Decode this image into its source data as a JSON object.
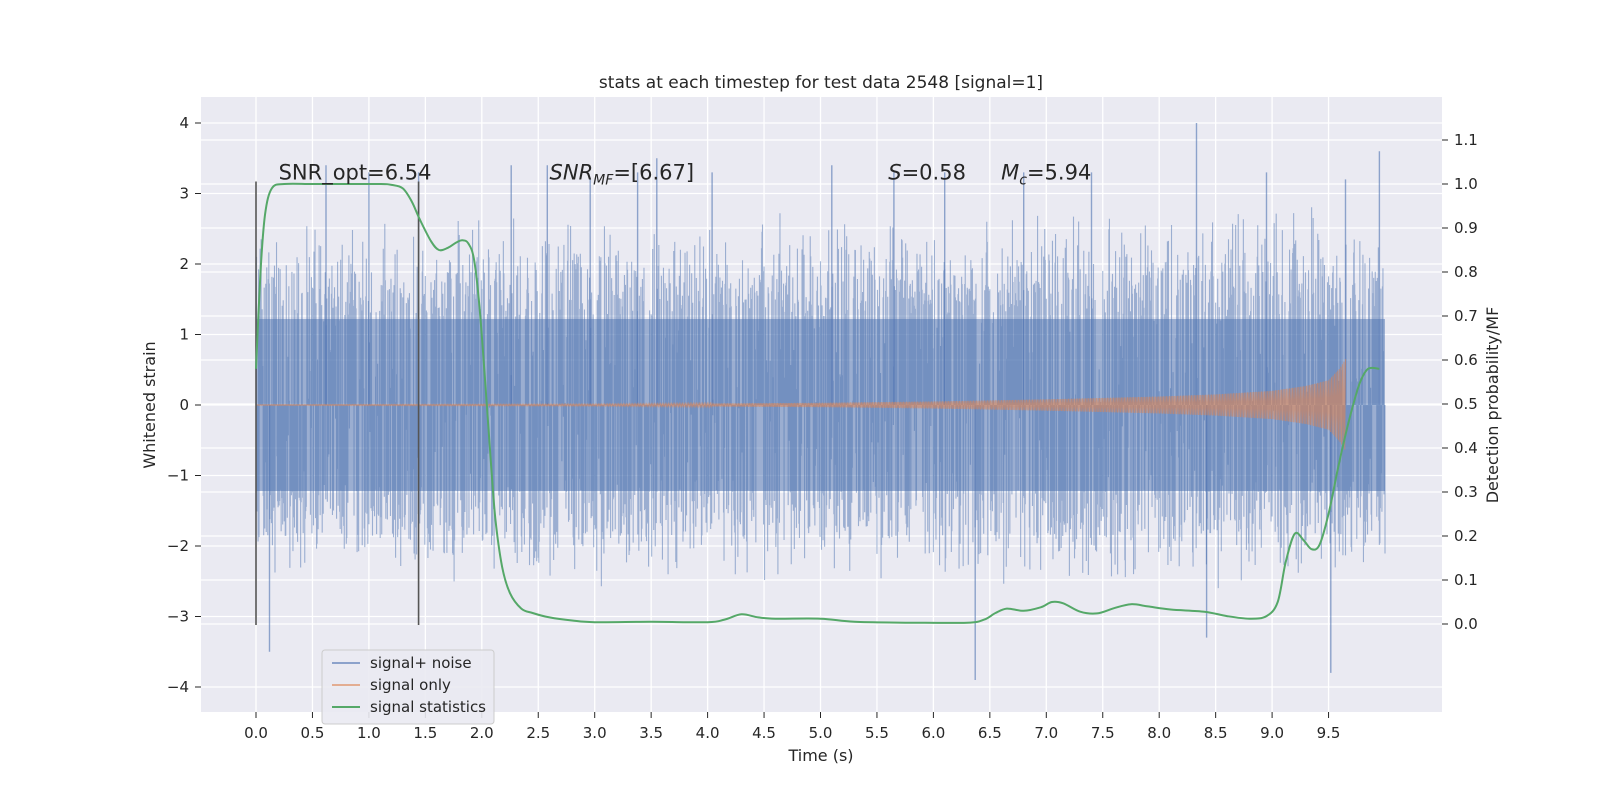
{
  "chart_data": {
    "type": "line",
    "title": "stats at each timestep for test data 2548 [signal=1]",
    "xlabel": "Time (s)",
    "ylabel": "Whitened strain",
    "y2label": "Detection probability/MF",
    "xlim": [
      -0.48,
      10.5
    ],
    "ylim": [
      -4.4,
      4.4
    ],
    "y2lim": [
      -0.2,
      1.2
    ],
    "grid": true,
    "legend_position": "lower-left",
    "x_ticks": [
      0.0,
      0.5,
      1.0,
      1.5,
      2.0,
      2.5,
      3.0,
      3.5,
      4.0,
      4.5,
      5.0,
      5.5,
      6.0,
      6.5,
      7.0,
      7.5,
      8.0,
      8.5,
      9.0,
      9.5
    ],
    "x_tick_labels": [
      "0.0",
      "0.5",
      "1.0",
      "1.5",
      "2.0",
      "2.5",
      "3.0",
      "3.5",
      "4.0",
      "4.5",
      "5.0",
      "5.5",
      "6.0",
      "6.5",
      "7.0",
      "7.5",
      "8.0",
      "8.5",
      "9.0",
      "9.5"
    ],
    "y_ticks": [
      4,
      3,
      2,
      1,
      0,
      -1,
      -2,
      -3,
      -4
    ],
    "y_tick_labels": [
      "4",
      "3",
      "2",
      "1",
      "0",
      "−1",
      "−2",
      "−3",
      "−4"
    ],
    "y2_ticks": [
      1.1,
      1.0,
      0.9,
      0.8,
      0.7,
      0.6,
      0.5,
      0.4,
      0.3,
      0.2,
      0.1,
      0.0
    ],
    "y2_tick_labels": [
      "1.1",
      "1.0",
      "0.9",
      "0.8",
      "0.7",
      "0.6",
      "0.5",
      "0.4",
      "0.3",
      "0.2",
      "0.1",
      "0.0"
    ],
    "vertical_markers": [
      0.0,
      1.44
    ],
    "annotations": [
      {
        "text": "SNR_opt=6.54",
        "x": 0.2,
        "y": 3.2
      },
      {
        "text": "SNR_MF=[6.67]",
        "x": 2.6,
        "y": 3.2
      },
      {
        "text": "S=0.58",
        "x": 5.6,
        "y": 3.2
      },
      {
        "text": "M_c=5.94",
        "x": 6.6,
        "y": 3.2
      }
    ],
    "series": [
      {
        "name": "signal+ noise",
        "color": "#4c72b0",
        "opacity": 0.5,
        "axis": "left",
        "x_range": [
          0.0,
          10.0
        ],
        "envelope_top": [
          [
            0.0,
            2.6
          ],
          [
            0.5,
            2.7
          ],
          [
            1.0,
            2.6
          ],
          [
            1.5,
            2.8
          ],
          [
            2.0,
            2.7
          ],
          [
            2.5,
            2.8
          ],
          [
            3.0,
            2.8
          ],
          [
            3.5,
            2.7
          ],
          [
            4.0,
            2.8
          ],
          [
            4.5,
            2.8
          ],
          [
            5.0,
            2.7
          ],
          [
            5.5,
            2.8
          ],
          [
            6.0,
            2.8
          ],
          [
            6.5,
            2.7
          ],
          [
            7.0,
            2.8
          ],
          [
            7.5,
            2.8
          ],
          [
            8.0,
            2.9
          ],
          [
            8.5,
            2.9
          ],
          [
            9.0,
            2.9
          ],
          [
            9.5,
            2.9
          ],
          [
            10.0,
            2.8
          ]
        ],
        "envelope_bottom": [
          [
            0.0,
            -2.5
          ],
          [
            0.5,
            -2.5
          ],
          [
            1.0,
            -2.5
          ],
          [
            1.5,
            -2.6
          ],
          [
            2.0,
            -2.6
          ],
          [
            2.5,
            -2.6
          ],
          [
            3.0,
            -2.7
          ],
          [
            3.5,
            -2.6
          ],
          [
            4.0,
            -2.6
          ],
          [
            4.5,
            -2.6
          ],
          [
            5.0,
            -2.5
          ],
          [
            5.5,
            -2.6
          ],
          [
            6.0,
            -2.6
          ],
          [
            6.5,
            -2.8
          ],
          [
            7.0,
            -2.6
          ],
          [
            7.5,
            -2.7
          ],
          [
            8.0,
            -2.7
          ],
          [
            8.5,
            -2.7
          ],
          [
            9.0,
            -2.8
          ],
          [
            9.5,
            -2.8
          ],
          [
            10.0,
            -2.5
          ]
        ],
        "peaks": [
          [
            0.12,
            -3.5
          ],
          [
            0.62,
            3.4
          ],
          [
            1.0,
            3.3
          ],
          [
            1.44,
            3.3
          ],
          [
            2.26,
            3.4
          ],
          [
            2.58,
            3.4
          ],
          [
            2.96,
            3.2
          ],
          [
            3.38,
            3.3
          ],
          [
            3.55,
            3.5
          ],
          [
            4.04,
            3.3
          ],
          [
            5.1,
            3.4
          ],
          [
            5.65,
            3.3
          ],
          [
            6.1,
            3.3
          ],
          [
            6.37,
            -3.9
          ],
          [
            6.8,
            3.3
          ],
          [
            7.4,
            3.3
          ],
          [
            8.33,
            4.0
          ],
          [
            8.42,
            -3.3
          ],
          [
            8.95,
            3.3
          ],
          [
            9.52,
            -3.8
          ],
          [
            9.65,
            3.2
          ],
          [
            9.95,
            3.6
          ]
        ]
      },
      {
        "name": "signal only",
        "color": "#dd8452",
        "opacity": 0.6,
        "axis": "left",
        "x_range": [
          0.0,
          9.65
        ],
        "amplitude_envelope": [
          [
            0.0,
            0.005
          ],
          [
            3.0,
            0.012
          ],
          [
            5.0,
            0.03
          ],
          [
            6.0,
            0.05
          ],
          [
            7.0,
            0.08
          ],
          [
            8.0,
            0.12
          ],
          [
            8.5,
            0.15
          ],
          [
            9.0,
            0.2
          ],
          [
            9.3,
            0.27
          ],
          [
            9.5,
            0.35
          ],
          [
            9.6,
            0.52
          ],
          [
            9.65,
            0.65
          ]
        ]
      },
      {
        "name": "signal statistics",
        "color": "#55a868",
        "opacity": 1,
        "axis": "right",
        "points": [
          [
            0.0,
            0.58
          ],
          [
            0.04,
            0.8
          ],
          [
            0.08,
            0.93
          ],
          [
            0.14,
            0.99
          ],
          [
            0.25,
            1.0
          ],
          [
            0.5,
            1.0
          ],
          [
            0.8,
            1.0
          ],
          [
            1.1,
            1.0
          ],
          [
            1.2,
            0.998
          ],
          [
            1.3,
            0.99
          ],
          [
            1.38,
            0.96
          ],
          [
            1.45,
            0.92
          ],
          [
            1.55,
            0.87
          ],
          [
            1.62,
            0.85
          ],
          [
            1.7,
            0.855
          ],
          [
            1.78,
            0.868
          ],
          [
            1.83,
            0.872
          ],
          [
            1.88,
            0.865
          ],
          [
            1.93,
            0.83
          ],
          [
            1.98,
            0.72
          ],
          [
            2.03,
            0.55
          ],
          [
            2.08,
            0.37
          ],
          [
            2.12,
            0.24
          ],
          [
            2.18,
            0.13
          ],
          [
            2.25,
            0.07
          ],
          [
            2.35,
            0.035
          ],
          [
            2.45,
            0.025
          ],
          [
            2.6,
            0.015
          ],
          [
            2.8,
            0.008
          ],
          [
            3.0,
            0.004
          ],
          [
            3.5,
            0.005
          ],
          [
            4.0,
            0.004
          ],
          [
            4.15,
            0.01
          ],
          [
            4.3,
            0.022
          ],
          [
            4.45,
            0.015
          ],
          [
            4.6,
            0.012
          ],
          [
            5.0,
            0.012
          ],
          [
            5.3,
            0.005
          ],
          [
            5.8,
            0.003
          ],
          [
            6.3,
            0.003
          ],
          [
            6.45,
            0.01
          ],
          [
            6.55,
            0.025
          ],
          [
            6.65,
            0.035
          ],
          [
            6.8,
            0.03
          ],
          [
            6.95,
            0.038
          ],
          [
            7.05,
            0.05
          ],
          [
            7.15,
            0.047
          ],
          [
            7.3,
            0.028
          ],
          [
            7.45,
            0.024
          ],
          [
            7.6,
            0.036
          ],
          [
            7.75,
            0.045
          ],
          [
            7.9,
            0.04
          ],
          [
            8.1,
            0.033
          ],
          [
            8.4,
            0.028
          ],
          [
            8.6,
            0.018
          ],
          [
            8.8,
            0.012
          ],
          [
            8.95,
            0.018
          ],
          [
            9.05,
            0.05
          ],
          [
            9.12,
            0.14
          ],
          [
            9.2,
            0.205
          ],
          [
            9.28,
            0.19
          ],
          [
            9.35,
            0.17
          ],
          [
            9.42,
            0.18
          ],
          [
            9.5,
            0.25
          ],
          [
            9.58,
            0.35
          ],
          [
            9.65,
            0.43
          ],
          [
            9.72,
            0.5
          ],
          [
            9.78,
            0.55
          ],
          [
            9.85,
            0.58
          ],
          [
            9.95,
            0.58
          ]
        ]
      }
    ]
  }
}
